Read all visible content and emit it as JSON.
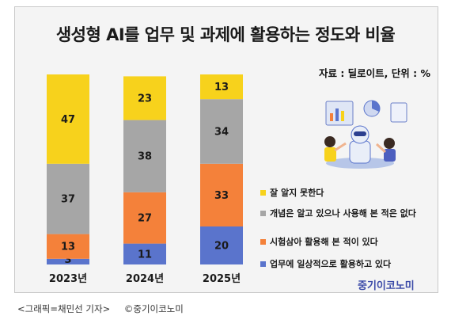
{
  "title": "생성형 AI를 업무 및 과제에 활용하는 정도와 비율",
  "source": "자료 : 딜로이트, 단위 : %",
  "brand": "중기이코노미",
  "caption": {
    "credit": "<그래픽=채민선 기자>",
    "copyright": "©중기이코노미"
  },
  "colors": {
    "not_well": "#f7d21c",
    "concept": "#a6a6a6",
    "tried": "#f4813a",
    "daily": "#5a74cc"
  },
  "chart_data": {
    "type": "bar",
    "stacked": true,
    "title": "생성형 AI를 업무 및 과제에 활용하는 정도와 비율",
    "categories": [
      "2023년",
      "2024년",
      "2025년"
    ],
    "series": [
      {
        "name": "업무에 일상적으로 활용하고 있다",
        "values": [
          3,
          11,
          20
        ]
      },
      {
        "name": "시험삼아 활용해 본 적이 있다",
        "values": [
          13,
          27,
          33
        ]
      },
      {
        "name": "개념은 알고 있으나 사용해 본 적은 없다",
        "values": [
          37,
          38,
          34
        ]
      },
      {
        "name": "잘 알지 못한다",
        "values": [
          47,
          23,
          13
        ]
      }
    ],
    "legend_order": [
      3,
      2,
      1,
      0
    ],
    "legend_position": "right",
    "unit": "%",
    "ylim": [
      0,
      100
    ]
  }
}
